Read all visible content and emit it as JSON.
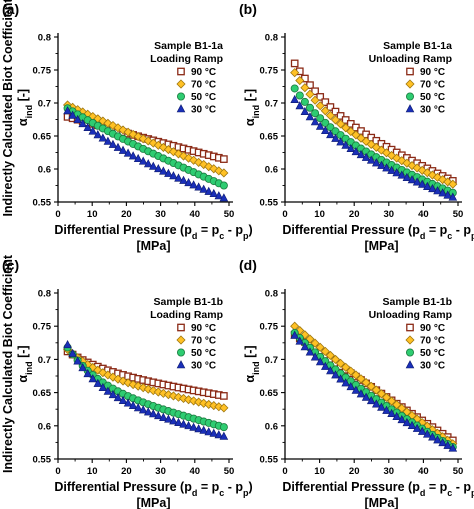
{
  "chart_data": [
    {
      "panel": "(a)",
      "type": "scatter",
      "annotation": [
        "Sample B1-1a",
        "Loading Ramp"
      ],
      "xlabel": [
        "Differential Pressure (p",
        "d",
        " = p",
        "c",
        " - p",
        "p",
        ")"
      ],
      "xunit": "[MPa]",
      "ylabel_main": "Indirectly Calculated Biot Coefficient",
      "ylabel_symbol": [
        "α",
        "ind",
        " [-]"
      ],
      "xlim": [
        0,
        50
      ],
      "ylim": [
        0.55,
        0.8
      ],
      "xticks": [
        "0",
        "10",
        "20",
        "30",
        "40",
        "50"
      ],
      "yticks": [
        "0.55",
        "0.6",
        "0.65",
        "0.7",
        "0.75",
        "0.8"
      ],
      "series": [
        {
          "name": "90 °C",
          "marker": "square",
          "start": [
            2.8,
            0.679
          ],
          "end": [
            48.5,
            0.615
          ],
          "shape": 0.05
        },
        {
          "name": "70 °C",
          "marker": "diamond",
          "start": [
            2.8,
            0.697
          ],
          "end": [
            48.5,
            0.594
          ],
          "shape": 0.07
        },
        {
          "name": "50 °C",
          "marker": "circle",
          "start": [
            2.8,
            0.692
          ],
          "end": [
            48.5,
            0.575
          ],
          "shape": 0.16
        },
        {
          "name": "30 °C",
          "marker": "triangle",
          "start": [
            2.8,
            0.688
          ],
          "end": [
            48.5,
            0.556
          ],
          "shape": 0.28
        }
      ]
    },
    {
      "panel": "(b)",
      "type": "scatter",
      "annotation": [
        "Sample B1-1a",
        "Unloading Ramp"
      ],
      "xlabel": [
        "Differential Pressure (p",
        "d",
        " = p",
        "c",
        " - p",
        "p",
        ")"
      ],
      "xunit": "[MPa]",
      "ylabel_main": "",
      "ylabel_symbol": [
        "α",
        "ind",
        " [-]"
      ],
      "xlim": [
        0,
        50
      ],
      "ylim": [
        0.55,
        0.8
      ],
      "xticks": [
        "0",
        "10",
        "20",
        "30",
        "40",
        "50"
      ],
      "yticks": [
        "0.55",
        "0.6",
        "0.65",
        "0.7",
        "0.75",
        "0.8"
      ],
      "series": [
        {
          "name": "90 °C",
          "marker": "square",
          "start": [
            2.8,
            0.76
          ],
          "end": [
            48.5,
            0.582
          ],
          "shape": 0.38
        },
        {
          "name": "70 °C",
          "marker": "diamond",
          "start": [
            2.8,
            0.746
          ],
          "end": [
            48.5,
            0.577
          ],
          "shape": 0.4
        },
        {
          "name": "50 °C",
          "marker": "circle",
          "start": [
            2.8,
            0.722
          ],
          "end": [
            48.5,
            0.564
          ],
          "shape": 0.38
        },
        {
          "name": "30 °C",
          "marker": "triangle",
          "start": [
            2.8,
            0.705
          ],
          "end": [
            48.5,
            0.557
          ],
          "shape": 0.36
        }
      ]
    },
    {
      "panel": "(c)",
      "type": "scatter",
      "annotation": [
        "Sample B1-1b",
        "Loading Ramp"
      ],
      "xlabel": [
        "Differential Pressure (p",
        "d",
        " = p",
        "c",
        " - p",
        "p",
        ")"
      ],
      "xunit": "[MPa]",
      "ylabel_main": "Indirectly Calculated Biot Coefficient",
      "ylabel_symbol": [
        "α",
        "ind",
        " [-]"
      ],
      "xlim": [
        0,
        50
      ],
      "ylim": [
        0.55,
        0.8
      ],
      "xticks": [
        "0",
        "10",
        "20",
        "30",
        "40",
        "50"
      ],
      "yticks": [
        "0.55",
        "0.6",
        "0.65",
        "0.7",
        "0.75",
        "0.8"
      ],
      "series": [
        {
          "name": "90 °C",
          "marker": "square",
          "start": [
            2.8,
            0.712
          ],
          "end": [
            48.5,
            0.645
          ],
          "shape": 0.4
        },
        {
          "name": "70 °C",
          "marker": "diamond",
          "start": [
            2.8,
            0.715
          ],
          "end": [
            48.5,
            0.627
          ],
          "shape": 0.42
        },
        {
          "name": "50 °C",
          "marker": "circle",
          "start": [
            2.8,
            0.718
          ],
          "end": [
            48.5,
            0.598
          ],
          "shape": 0.48
        },
        {
          "name": "30 °C",
          "marker": "triangle",
          "start": [
            2.8,
            0.722
          ],
          "end": [
            48.5,
            0.584
          ],
          "shape": 0.52
        }
      ]
    },
    {
      "panel": "(d)",
      "type": "scatter",
      "annotation": [
        "Sample B1-1b",
        "Unloading Ramp"
      ],
      "xlabel": [
        "Differential Pressure (p",
        "d",
        " = p",
        "c",
        " - p",
        "p",
        ")"
      ],
      "xunit": "[MPa]",
      "ylabel_main": "",
      "ylabel_symbol": [
        "α",
        "ind",
        " [-]"
      ],
      "xlim": [
        0,
        50
      ],
      "ylim": [
        0.55,
        0.8
      ],
      "xticks": [
        "0",
        "10",
        "20",
        "30",
        "40",
        "50"
      ],
      "yticks": [
        "0.55",
        "0.6",
        "0.65",
        "0.7",
        "0.75",
        "0.8"
      ],
      "series": [
        {
          "name": "90 °C",
          "marker": "square",
          "start": [
            2.8,
            0.737
          ],
          "end": [
            48.5,
            0.578
          ],
          "shape": 0.05
        },
        {
          "name": "70 °C",
          "marker": "diamond",
          "start": [
            2.8,
            0.75
          ],
          "end": [
            48.5,
            0.573
          ],
          "shape": 0.12
        },
        {
          "name": "50 °C",
          "marker": "circle",
          "start": [
            2.8,
            0.74
          ],
          "end": [
            48.5,
            0.568
          ],
          "shape": 0.22
        },
        {
          "name": "30 °C",
          "marker": "triangle",
          "start": [
            2.8,
            0.736
          ],
          "end": [
            48.5,
            0.566
          ],
          "shape": 0.28
        }
      ]
    }
  ],
  "marker_styles": {
    "square": {
      "fill": "#ffffff",
      "stroke": "#8b2a16"
    },
    "diamond": {
      "fill": "#ffc125",
      "stroke": "#a07810"
    },
    "circle": {
      "fill": "#2ecc71",
      "stroke": "#1b7a3e"
    },
    "triangle": {
      "fill": "#1a2fb8",
      "stroke": "#0d1a6e"
    }
  }
}
